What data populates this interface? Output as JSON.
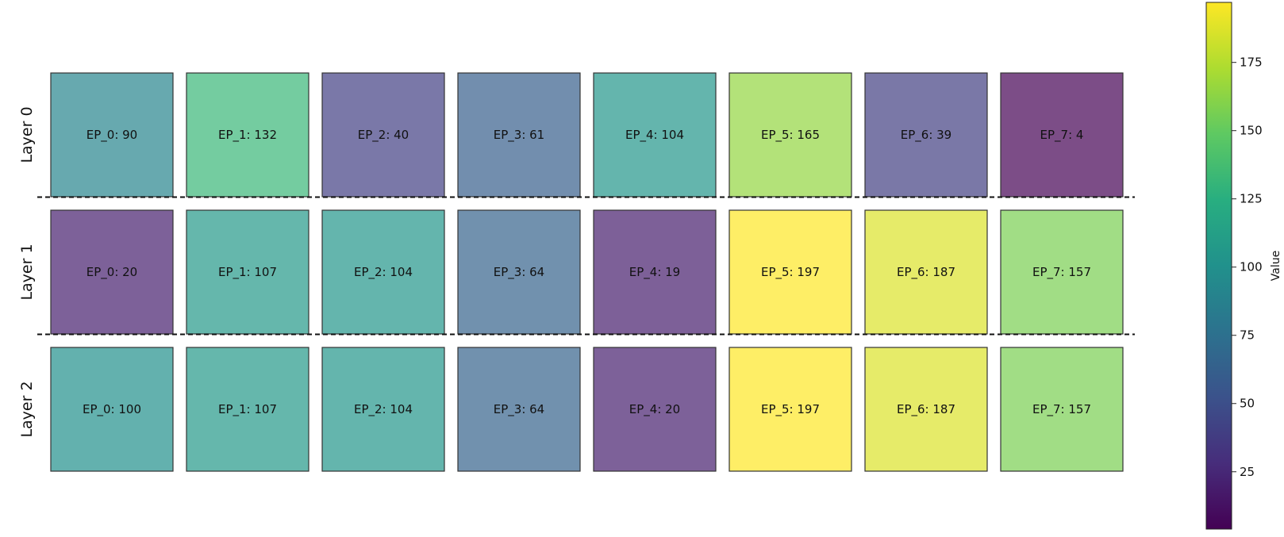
{
  "chart_data": {
    "type": "heatmap",
    "rows": [
      "Layer 0",
      "Layer 1",
      "Layer 2"
    ],
    "columns": [
      "EP_0",
      "EP_1",
      "EP_2",
      "EP_3",
      "EP_4",
      "EP_5",
      "EP_6",
      "EP_7"
    ],
    "cells": [
      [
        {
          "label": "EP_0: 90",
          "value": 90
        },
        {
          "label": "EP_1: 132",
          "value": 132
        },
        {
          "label": "EP_2: 40",
          "value": 40
        },
        {
          "label": "EP_3: 61",
          "value": 61
        },
        {
          "label": "EP_4: 104",
          "value": 104
        },
        {
          "label": "EP_5: 165",
          "value": 165
        },
        {
          "label": "EP_6: 39",
          "value": 39
        },
        {
          "label": "EP_7: 4",
          "value": 4
        }
      ],
      [
        {
          "label": "EP_0: 20",
          "value": 20
        },
        {
          "label": "EP_1: 107",
          "value": 107
        },
        {
          "label": "EP_2: 104",
          "value": 104
        },
        {
          "label": "EP_3: 64",
          "value": 64
        },
        {
          "label": "EP_4: 19",
          "value": 19
        },
        {
          "label": "EP_5: 197",
          "value": 197
        },
        {
          "label": "EP_6: 187",
          "value": 187
        },
        {
          "label": "EP_7: 157",
          "value": 157
        }
      ],
      [
        {
          "label": "EP_0: 100",
          "value": 100
        },
        {
          "label": "EP_1: 107",
          "value": 107
        },
        {
          "label": "EP_2: 104",
          "value": 104
        },
        {
          "label": "EP_3: 64",
          "value": 64
        },
        {
          "label": "EP_4: 20",
          "value": 20
        },
        {
          "label": "EP_5: 197",
          "value": 197
        },
        {
          "label": "EP_6: 187",
          "value": 187
        },
        {
          "label": "EP_7: 157",
          "value": 157
        }
      ]
    ],
    "colormap": "viridis",
    "colorbar": {
      "label": "Value",
      "range": [
        4,
        197
      ],
      "ticks": [
        {
          "value": 25,
          "label": "25"
        },
        {
          "value": 50,
          "label": "50"
        },
        {
          "value": 75,
          "label": "75"
        },
        {
          "value": 100,
          "label": "100"
        },
        {
          "value": 125,
          "label": "125"
        },
        {
          "value": 150,
          "label": "150"
        },
        {
          "value": 175,
          "label": "175"
        }
      ]
    },
    "row_separators": "dashed"
  }
}
